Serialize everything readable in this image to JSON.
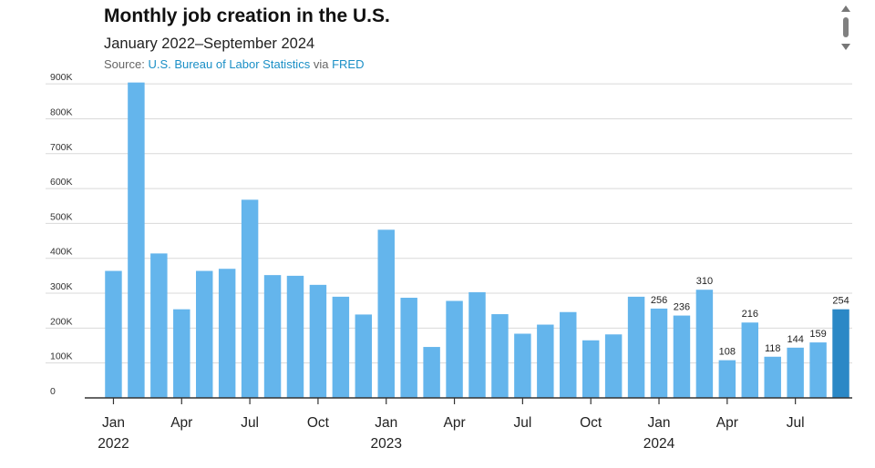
{
  "header": {
    "title": "Monthly job creation in the U.S.",
    "subtitle": "January 2022–September 2024",
    "source_prefix": "Source:",
    "source_name": "U.S. Bureau of Labor Statistics",
    "source_via": "via",
    "source_fred": "FRED"
  },
  "colors": {
    "bar": "#64b5ec",
    "bar_highlight": "#2b88c6",
    "grid": "#d9d9d9",
    "axis": "#333333",
    "link": "#1a8fc6"
  },
  "icons": {
    "scroll": "scroll-indicator-icon"
  },
  "chart_data": {
    "type": "bar",
    "title": "Monthly job creation in the U.S.",
    "subtitle": "January 2022–September 2024",
    "categories": [
      "Jan 2022",
      "Feb 2022",
      "Mar 2022",
      "Apr 2022",
      "May 2022",
      "Jun 2022",
      "Jul 2022",
      "Aug 2022",
      "Sep 2022",
      "Oct 2022",
      "Nov 2022",
      "Dec 2022",
      "Jan 2023",
      "Feb 2023",
      "Mar 2023",
      "Apr 2023",
      "May 2023",
      "Jun 2023",
      "Jul 2023",
      "Aug 2023",
      "Sep 2023",
      "Oct 2023",
      "Nov 2023",
      "Dec 2023",
      "Jan 2024",
      "Feb 2024",
      "Mar 2024",
      "Apr 2024",
      "May 2024",
      "Jun 2024",
      "Jul 2024",
      "Aug 2024",
      "Sep 2024"
    ],
    "values": [
      364,
      904,
      414,
      254,
      364,
      370,
      568,
      352,
      350,
      324,
      290,
      239,
      482,
      287,
      146,
      278,
      303,
      240,
      184,
      210,
      246,
      165,
      182,
      290,
      256,
      236,
      310,
      108,
      216,
      118,
      144,
      159,
      254
    ],
    "data_labels": [
      null,
      null,
      null,
      null,
      null,
      null,
      null,
      null,
      null,
      null,
      null,
      null,
      null,
      null,
      null,
      null,
      null,
      null,
      null,
      null,
      null,
      null,
      null,
      null,
      "256",
      "236",
      "310",
      "108",
      "216",
      "118",
      "144",
      "159",
      "254"
    ],
    "highlight_index": 32,
    "y_ticks": [
      0,
      100,
      200,
      300,
      400,
      500,
      600,
      700,
      800,
      900
    ],
    "y_tick_labels": [
      "0",
      "100K",
      "200K",
      "300K",
      "400K",
      "500K",
      "600K",
      "700K",
      "800K",
      "900K"
    ],
    "ylim": [
      0,
      950
    ],
    "x_tick_labels": [
      {
        "index": 0,
        "month": "Jan",
        "year": "2022"
      },
      {
        "index": 3,
        "month": "Apr",
        "year": ""
      },
      {
        "index": 6,
        "month": "Jul",
        "year": ""
      },
      {
        "index": 9,
        "month": "Oct",
        "year": ""
      },
      {
        "index": 12,
        "month": "Jan",
        "year": "2023"
      },
      {
        "index": 15,
        "month": "Apr",
        "year": ""
      },
      {
        "index": 18,
        "month": "Jul",
        "year": ""
      },
      {
        "index": 21,
        "month": "Oct",
        "year": ""
      },
      {
        "index": 24,
        "month": "Jan",
        "year": "2024"
      },
      {
        "index": 27,
        "month": "Apr",
        "year": ""
      },
      {
        "index": 30,
        "month": "Jul",
        "year": ""
      }
    ],
    "xlabel": "",
    "ylabel": "",
    "grid": true,
    "legend": false
  }
}
